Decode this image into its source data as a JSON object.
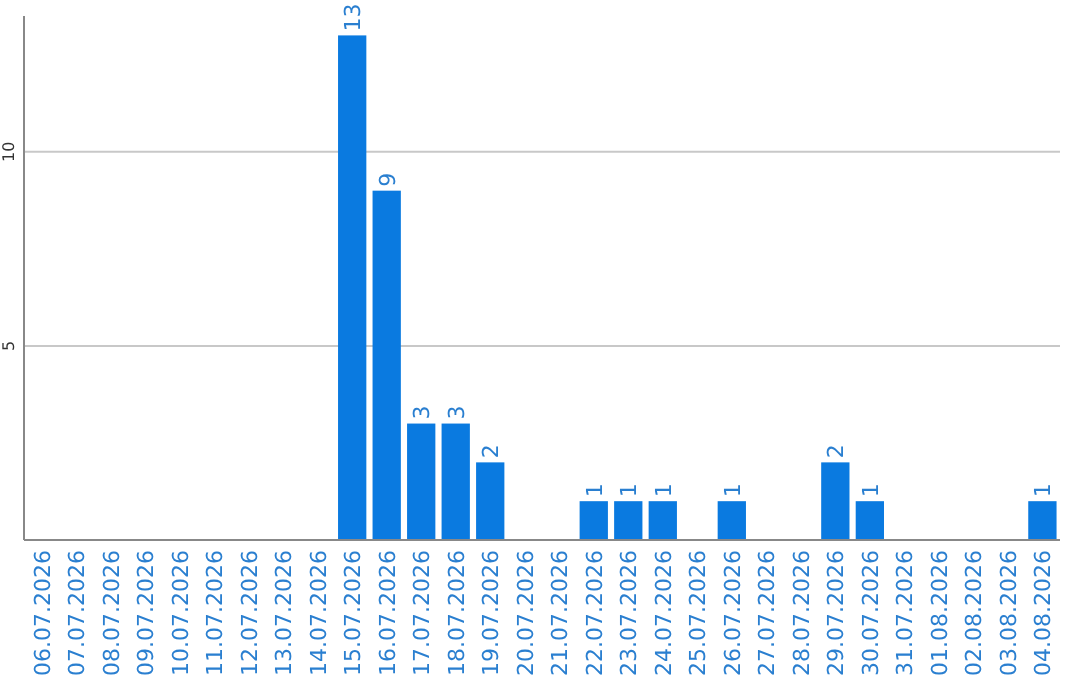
{
  "chart_data": {
    "type": "bar",
    "categories": [
      "06.07.2026",
      "07.07.2026",
      "08.07.2026",
      "09.07.2026",
      "10.07.2026",
      "11.07.2026",
      "12.07.2026",
      "13.07.2026",
      "14.07.2026",
      "15.07.2026",
      "16.07.2026",
      "17.07.2026",
      "18.07.2026",
      "19.07.2026",
      "20.07.2026",
      "21.07.2026",
      "22.07.2026",
      "23.07.2026",
      "24.07.2026",
      "25.07.2026",
      "26.07.2026",
      "27.07.2026",
      "28.07.2026",
      "29.07.2026",
      "30.07.2026",
      "31.07.2026",
      "01.08.2026",
      "02.08.2026",
      "03.08.2026",
      "04.08.2026"
    ],
    "values": [
      0,
      0,
      0,
      0,
      0,
      0,
      0,
      0,
      0,
      13,
      9,
      3,
      3,
      2,
      0,
      0,
      1,
      1,
      1,
      0,
      1,
      0,
      0,
      2,
      1,
      0,
      0,
      0,
      0,
      1
    ],
    "value_labels": [
      null,
      null,
      null,
      null,
      null,
      null,
      null,
      null,
      null,
      "13",
      "9",
      "3",
      "3",
      "2",
      null,
      null,
      "1",
      "1",
      "1",
      null,
      "1",
      null,
      null,
      "2",
      "1",
      null,
      null,
      null,
      null,
      "1"
    ],
    "color": "#0a7ae0",
    "ylim": [
      0,
      13.5
    ],
    "yticks": [
      5,
      10
    ],
    "grid": "y"
  }
}
